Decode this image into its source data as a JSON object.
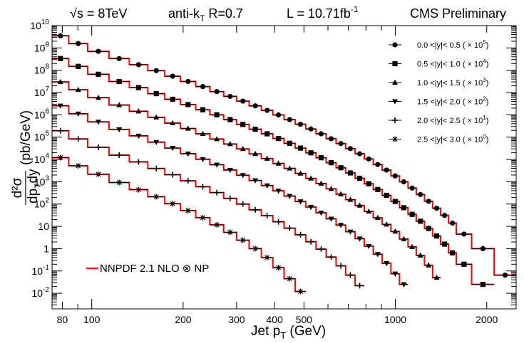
{
  "header": {
    "energy": "√s = 8TeV",
    "algo": "anti-k",
    "algo_sub": "T",
    "algo_rest": " R=0.7",
    "lumi": "L = 10.71fb",
    "lumi_sup": "-1",
    "experiment": "CMS Preliminary"
  },
  "chart_data": {
    "type": "line",
    "xlabel": "Jet p",
    "xlabel_sub": "T",
    "xlabel_unit": " (GeV)",
    "ylabel_num": "d²σ",
    "ylabel_den": "dp",
    "ylabel_den_sub": "T",
    "ylabel_den_rest": "dy",
    "ylabel_unit": "(pb/GeV)",
    "xscale": "log",
    "yscale": "log",
    "xlim": [
      74,
      2500
    ],
    "ylim": [
      0.002,
      10000000000
    ],
    "xticks": [
      {
        "v": 80,
        "label": "80"
      },
      {
        "v": 100,
        "label": "100"
      },
      {
        "v": 200,
        "label": "200"
      },
      {
        "v": 300,
        "label": "300"
      },
      {
        "v": 400,
        "label": "400"
      },
      {
        "v": 500,
        "label": "500"
      },
      {
        "v": 1000,
        "label": "1000"
      },
      {
        "v": 2000,
        "label": "2000"
      }
    ],
    "yticks": [
      {
        "e": -2,
        "base": "10",
        "sup": "-2"
      },
      {
        "e": -1,
        "base": "10",
        "sup": "-1"
      },
      {
        "e": 0,
        "base": "1",
        "sup": ""
      },
      {
        "e": 1,
        "base": "10",
        "sup": ""
      },
      {
        "e": 2,
        "base": "10",
        "sup": "2"
      },
      {
        "e": 3,
        "base": "10",
        "sup": "3"
      },
      {
        "e": 4,
        "base": "10",
        "sup": "4"
      },
      {
        "e": 5,
        "base": "10",
        "sup": "5"
      },
      {
        "e": 6,
        "base": "10",
        "sup": "6"
      },
      {
        "e": 7,
        "base": "10",
        "sup": "7"
      },
      {
        "e": 8,
        "base": "10",
        "sup": "8"
      },
      {
        "e": 9,
        "base": "10",
        "sup": "9"
      },
      {
        "e": 10,
        "base": "10",
        "sup": "10"
      }
    ],
    "bin_edges": [
      74,
      84,
      97,
      114,
      133,
      153,
      174,
      196,
      220,
      245,
      272,
      300,
      330,
      362,
      395,
      430,
      468,
      507,
      548,
      592,
      638,
      686,
      737,
      790,
      846,
      905,
      967,
      1032,
      1101,
      1172,
      1248,
      1327,
      1410,
      1497,
      1588,
      1784,
      2116,
      2500
    ],
    "series": [
      {
        "name": "0.0 <|y|< 0.5 (",
        "scale": "10",
        "scale_sup": "5",
        "marker": "circle",
        "values": [
          3500000000.0,
          1570000000.0,
          700000000.0,
          333000000.0,
          178000000.0,
          96000000.0,
          54000000.0,
          31400000.0,
          18500000.0,
          11000000.0,
          6720000.0,
          4120000.0,
          2530000.0,
          1590000.0,
          990000.0,
          610000.0,
          376000.0,
          232000.0,
          141000.0,
          85000.0,
          51500.0,
          30600.0,
          18000.0,
          10500.0,
          5900.0,
          3340.0,
          1830.0,
          990,
          520,
          268,
          133,
          65,
          31,
          14,
          4.5,
          1.0,
          0.065
        ]
      },
      {
        "name": "0.5 <|y|< 1.0 (",
        "scale": "10",
        "scale_sup": "4",
        "marker": "square",
        "values": [
          334000000.0,
          149000000.0,
          66000000.0,
          31200000.0,
          16600000.0,
          8900000.0,
          4990000.0,
          2880000.0,
          1690000.0,
          1000000.0,
          608000.0,
          371000.0,
          226000.0,
          141000.0,
          87000.0,
          53000.0,
          32300.0,
          19800.0,
          11900.0,
          7100.0,
          4240.0,
          2480.0,
          1430.0,
          810,
          448,
          245,
          131,
          68.5,
          34.5,
          17,
          8.0,
          3.7,
          1.6,
          0.65,
          0.2,
          0.025
        ]
      },
      {
        "name": "1.0 <|y|< 1.5 (",
        "scale": "10",
        "scale_sup": "3",
        "marker": "triangle-up",
        "values": [
          30000000.0,
          13300000.0,
          5900000.0,
          2750000.0,
          1440000.0,
          770000.0,
          426000.0,
          243000.0,
          141000.0,
          82000.0,
          49200.0,
          29600.0,
          17800.0,
          10900.0,
          6600.0,
          3960.0,
          2350.0,
          1410.0,
          830,
          480,
          277,
          157,
          86.5,
          46.5,
          24.2,
          12.2,
          5.9,
          2.7,
          1.2,
          0.5,
          0.18,
          0.05
        ]
      },
      {
        "name": "1.5 <|y|< 2.0 (",
        "scale": "10",
        "scale_sup": "2",
        "marker": "triangle-down",
        "values": [
          2560000.0,
          1120000.0,
          485000.0,
          222000.0,
          114000.0,
          59600.0,
          32300.0,
          18000.0,
          10200.0,
          5800.0,
          3360.0,
          1960.0,
          1140.0,
          675,
          393,
          228,
          130,
          73.5,
          40.5,
          21.8,
          11.4,
          5.75,
          2.8,
          1.3,
          0.56,
          0.22,
          0.075,
          0.025
        ]
      },
      {
        "name": "2.0 <|y|< 2.5 (",
        "scale": "10",
        "scale_sup": "1",
        "marker": "plus",
        "values": [
          193000.0,
          83000.0,
          35000.0,
          15600.0,
          7750.0,
          3920.0,
          2060.0,
          1100.0,
          598,
          326,
          180,
          100,
          55,
          30,
          16,
          8.3,
          4.2,
          2.05,
          0.95,
          0.42,
          0.17,
          0.065,
          0.022
        ]
      },
      {
        "name": "2.5 <|y|< 3.0 (",
        "scale": "10",
        "scale_sup": "0",
        "marker": "star",
        "values": [
          12100.0,
          5200.0,
          2160.0,
          925,
          440,
          212,
          104,
          51,
          24.5,
          11.7,
          5.4,
          2.4,
          1.0,
          0.4,
          0.14,
          0.045,
          0.012
        ]
      }
    ],
    "theory_legend": "NNPDF 2.1 NLO",
    "theory_legend_tail": " NP",
    "theory_color": "#ff0000",
    "marker_color": "#000000"
  }
}
